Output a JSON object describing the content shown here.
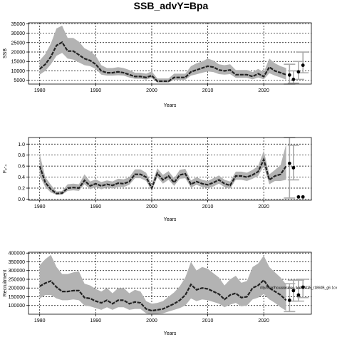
{
  "figure": {
    "title": "SSB_advY=Bpa"
  },
  "chart_data": [
    {
      "id": "ssb",
      "type": "line",
      "xlabel": "Years",
      "ylabel": "SSB",
      "xlim": [
        1978,
        2028.5
      ],
      "ylim": [
        3000,
        35500
      ],
      "xticks": [
        1980,
        1990,
        2000,
        2010,
        2020
      ],
      "yticks": [
        5000,
        10000,
        15000,
        20000,
        25000,
        30000,
        35000
      ],
      "grid": true,
      "series": [
        {
          "role": "estimate",
          "color": "#222222",
          "x": [
            1980,
            1981,
            1982,
            1983,
            1984,
            1985,
            1986,
            1987,
            1988,
            1989,
            1990,
            1991,
            1992,
            1993,
            1994,
            1995,
            1996,
            1997,
            1998,
            1999,
            2000,
            2001,
            2002,
            2003,
            2004,
            2005,
            2006,
            2007,
            2008,
            2009,
            2010,
            2011,
            2012,
            2013,
            2014,
            2015,
            2016,
            2017,
            2018,
            2019,
            2020,
            2021,
            2022,
            2023,
            2024
          ],
          "y": [
            11000,
            13500,
            17500,
            23500,
            25200,
            20500,
            20500,
            18500,
            16500,
            15500,
            13500,
            10000,
            9000,
            9000,
            9500,
            9000,
            8000,
            7000,
            7000,
            6500,
            7500,
            4500,
            4500,
            4500,
            6500,
            6500,
            6500,
            9500,
            10500,
            11500,
            12500,
            12000,
            10500,
            10000,
            10500,
            8000,
            8000,
            8000,
            7000,
            8500,
            7000,
            12000,
            10000,
            9000,
            8000
          ],
          "lower": [
            8000,
            10000,
            13500,
            18000,
            19500,
            16500,
            16000,
            14500,
            13000,
            12500,
            11000,
            8000,
            7500,
            7500,
            7700,
            7500,
            6500,
            5800,
            5800,
            5400,
            6200,
            3800,
            3800,
            3800,
            5300,
            5300,
            5300,
            7500,
            8200,
            9000,
            9700,
            9400,
            8300,
            8000,
            8300,
            6300,
            6300,
            6300,
            5500,
            6500,
            5500,
            8800,
            7500,
            6500,
            5300
          ],
          "upper": [
            15500,
            19000,
            24500,
            32500,
            34000,
            27500,
            27500,
            25500,
            22000,
            20500,
            18000,
            13000,
            11500,
            11500,
            12000,
            11500,
            10500,
            9000,
            9000,
            8500,
            9700,
            6000,
            6000,
            6000,
            8500,
            8500,
            8500,
            12500,
            14000,
            15000,
            16500,
            15500,
            13500,
            13000,
            13500,
            10500,
            10500,
            10500,
            9300,
            11000,
            9300,
            16500,
            14000,
            12500,
            11500
          ]
        }
      ],
      "forecast": [
        {
          "x": 2024.6,
          "y": 7800,
          "lower": 3000,
          "upper": 13500
        },
        {
          "x": 2025.3,
          "y": 5500,
          "lower": 3500,
          "upper": 10000
        },
        {
          "x": 2026.2,
          "y": 9500,
          "lower": 5500,
          "upper": 15000
        },
        {
          "x": 2027.0,
          "y": 13000,
          "lower": 9000,
          "upper": 20000
        }
      ]
    },
    {
      "id": "f",
      "type": "line",
      "xlabel": "Years",
      "ylabel": "F₂-₄",
      "xlim": [
        1978,
        2028.5
      ],
      "ylim": [
        -0.02,
        1.12
      ],
      "xticks": [
        1980,
        1990,
        2000,
        2010,
        2020
      ],
      "yticks": [
        0.0,
        0.2,
        0.4,
        0.6,
        0.8,
        1.0
      ],
      "grid": true,
      "series": [
        {
          "role": "estimate",
          "color": "#222222",
          "x": [
            1980,
            1981,
            1982,
            1983,
            1984,
            1985,
            1986,
            1987,
            1988,
            1989,
            1990,
            1991,
            1992,
            1993,
            1994,
            1995,
            1996,
            1997,
            1998,
            1999,
            2000,
            2001,
            2002,
            2003,
            2004,
            2005,
            2006,
            2007,
            2008,
            2009,
            2010,
            2011,
            2012,
            2013,
            2014,
            2015,
            2016,
            2017,
            2018,
            2019,
            2020,
            2021,
            2022,
            2023,
            2024
          ],
          "y": [
            0.6,
            0.3,
            0.18,
            0.1,
            0.11,
            0.2,
            0.21,
            0.2,
            0.34,
            0.24,
            0.28,
            0.24,
            0.27,
            0.25,
            0.29,
            0.28,
            0.32,
            0.45,
            0.45,
            0.4,
            0.2,
            0.47,
            0.35,
            0.42,
            0.3,
            0.44,
            0.46,
            0.27,
            0.32,
            0.28,
            0.26,
            0.3,
            0.35,
            0.28,
            0.25,
            0.42,
            0.42,
            0.4,
            0.44,
            0.5,
            0.72,
            0.35,
            0.42,
            0.45,
            0.6
          ],
          "lower": [
            0.42,
            0.22,
            0.12,
            0.08,
            0.08,
            0.15,
            0.16,
            0.15,
            0.27,
            0.18,
            0.22,
            0.18,
            0.21,
            0.19,
            0.22,
            0.22,
            0.26,
            0.38,
            0.38,
            0.33,
            0.15,
            0.4,
            0.28,
            0.35,
            0.24,
            0.37,
            0.38,
            0.21,
            0.26,
            0.22,
            0.2,
            0.23,
            0.28,
            0.22,
            0.19,
            0.35,
            0.35,
            0.33,
            0.37,
            0.42,
            0.6,
            0.27,
            0.33,
            0.33,
            0.35
          ],
          "upper": [
            0.82,
            0.4,
            0.26,
            0.14,
            0.15,
            0.27,
            0.28,
            0.27,
            0.45,
            0.32,
            0.36,
            0.31,
            0.34,
            0.32,
            0.37,
            0.36,
            0.4,
            0.54,
            0.54,
            0.48,
            0.27,
            0.56,
            0.44,
            0.51,
            0.38,
            0.53,
            0.55,
            0.34,
            0.4,
            0.35,
            0.33,
            0.38,
            0.43,
            0.35,
            0.32,
            0.5,
            0.5,
            0.48,
            0.53,
            0.6,
            0.88,
            0.45,
            0.53,
            0.62,
            1.0
          ]
        }
      ],
      "forecast": [
        {
          "x": 2024.6,
          "y": 0.65,
          "lower": 0.02,
          "upper": 1.12
        },
        {
          "x": 2025.3,
          "y": 0.57,
          "lower": 0.35,
          "upper": 0.98
        },
        {
          "x": 2026.2,
          "y": 0.04,
          "lower": 0.04,
          "upper": 0.04
        },
        {
          "x": 2027.0,
          "y": 0.04,
          "lower": 0.04,
          "upper": 0.04
        }
      ]
    },
    {
      "id": "rec",
      "type": "line",
      "xlabel": "Years",
      "ylabel": "Recruitment",
      "annotation": "/illy/haar/hcuaaasmai_hsm/2025_r1860B_g6 1cv",
      "xlim": [
        1978,
        2028.5
      ],
      "ylim": [
        50000,
        405000
      ],
      "xticks": [
        1980,
        1990,
        2000,
        2010,
        2020
      ],
      "yticks": [
        100000,
        150000,
        200000,
        250000,
        300000,
        350000,
        400000
      ],
      "grid": true,
      "series": [
        {
          "role": "estimate",
          "color": "#222222",
          "x": [
            1980,
            1981,
            1982,
            1983,
            1984,
            1985,
            1986,
            1987,
            1988,
            1989,
            1990,
            1991,
            1992,
            1993,
            1994,
            1995,
            1996,
            1997,
            1998,
            1999,
            2000,
            2001,
            2002,
            2003,
            2004,
            2005,
            2006,
            2007,
            2008,
            2009,
            2010,
            2011,
            2012,
            2013,
            2014,
            2015,
            2016,
            2017,
            2018,
            2019,
            2020,
            2021,
            2022,
            2023,
            2024
          ],
          "y": [
            210000,
            228000,
            240000,
            205000,
            180000,
            180000,
            185000,
            185000,
            145000,
            140000,
            125000,
            115000,
            130000,
            110000,
            130000,
            130000,
            110000,
            120000,
            115000,
            80000,
            70000,
            75000,
            80000,
            95000,
            110000,
            130000,
            160000,
            220000,
            190000,
            200000,
            195000,
            180000,
            165000,
            135000,
            160000,
            170000,
            145000,
            150000,
            200000,
            215000,
            245000,
            200000,
            180000,
            160000,
            130000
          ],
          "lower": [
            140000,
            160000,
            160000,
            140000,
            130000,
            130000,
            135000,
            130000,
            100000,
            95000,
            85000,
            75000,
            90000,
            75000,
            90000,
            90000,
            75000,
            80000,
            80000,
            55000,
            48000,
            52000,
            55000,
            65000,
            75000,
            85000,
            100000,
            140000,
            125000,
            135000,
            130000,
            120000,
            110000,
            90000,
            105000,
            115000,
            95000,
            100000,
            135000,
            145000,
            165000,
            135000,
            115000,
            90000,
            70000
          ],
          "upper": [
            330000,
            365000,
            390000,
            320000,
            280000,
            280000,
            290000,
            295000,
            225000,
            215000,
            195000,
            180000,
            200000,
            170000,
            200000,
            200000,
            170000,
            190000,
            180000,
            125000,
            110000,
            115000,
            125000,
            150000,
            175000,
            210000,
            260000,
            350000,
            300000,
            320000,
            310000,
            285000,
            260000,
            215000,
            250000,
            270000,
            230000,
            240000,
            320000,
            340000,
            385000,
            320000,
            290000,
            260000,
            220000
          ]
        }
      ],
      "forecast": [
        {
          "x": 2024.6,
          "y": 130000,
          "lower": 65000,
          "upper": 225000
        },
        {
          "x": 2025.3,
          "y": 185000,
          "lower": 125000,
          "upper": 245000
        },
        {
          "x": 2026.2,
          "y": 160000,
          "lower": 125000,
          "upper": 245000
        },
        {
          "x": 2027.0,
          "y": 205000,
          "lower": 145000,
          "upper": 250000
        }
      ]
    }
  ]
}
